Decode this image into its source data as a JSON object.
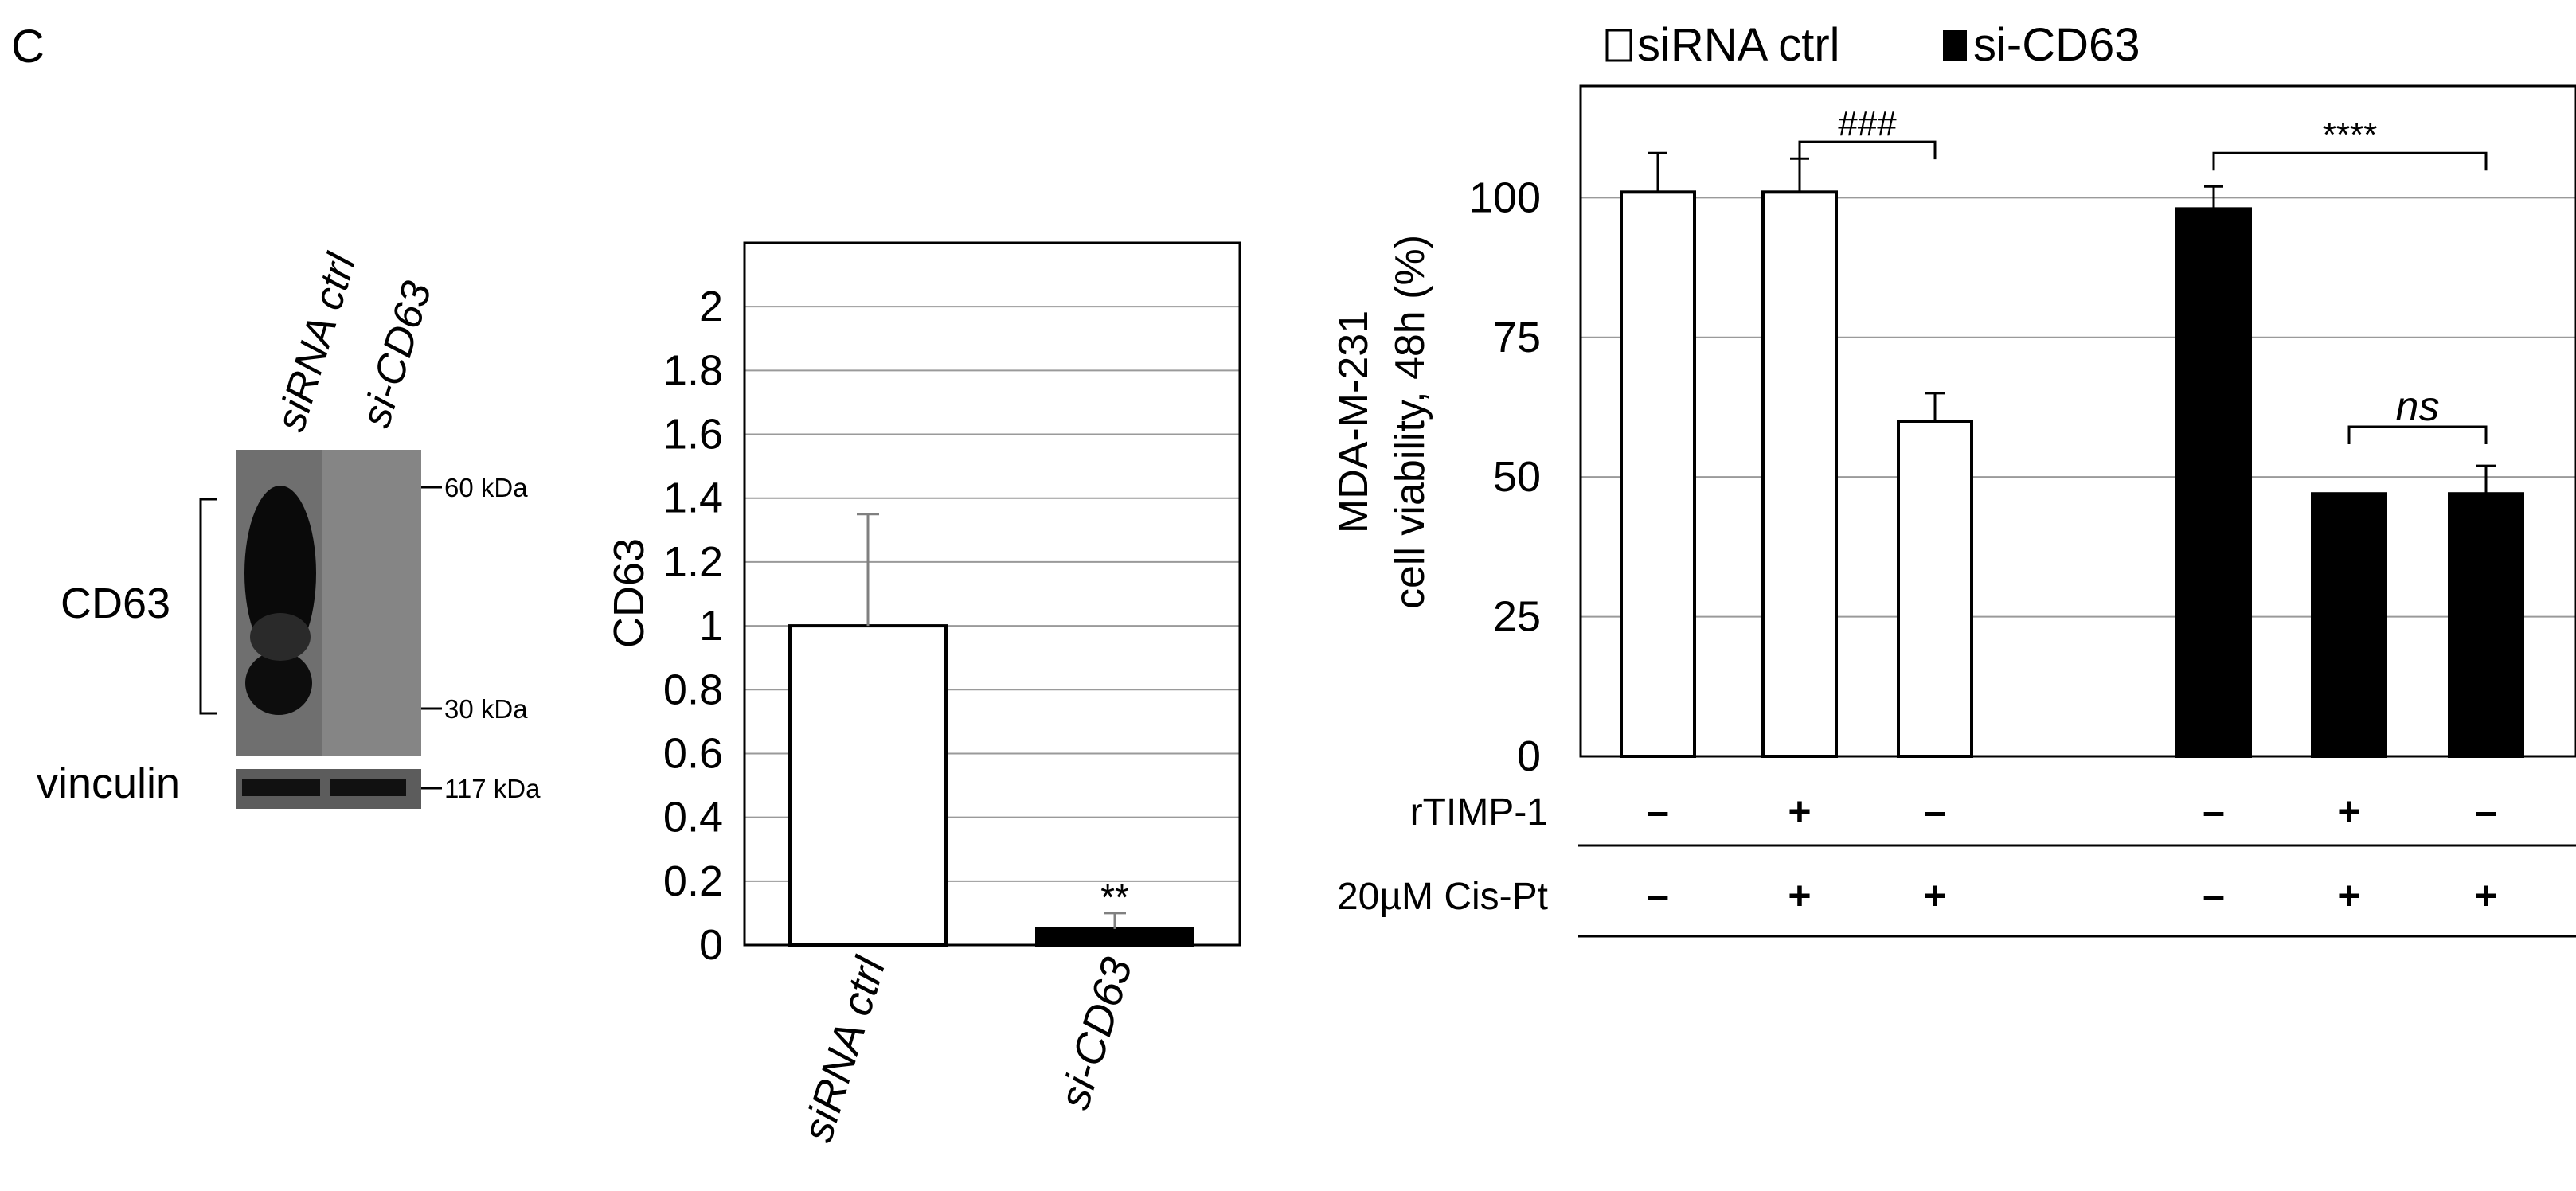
{
  "panel_label": "C",
  "western_blot": {
    "lanes": [
      "siRNA ctrl",
      "si-CD63"
    ],
    "protein_labels": [
      "CD63",
      "vinculin"
    ],
    "markers": [
      "60 kDa",
      "30 kDa",
      "117 kDa"
    ]
  },
  "legend": {
    "items": [
      {
        "label": "siRNA ctrl",
        "color": "#ffffff"
      },
      {
        "label": "si-CD63",
        "color": "#000000"
      }
    ]
  },
  "conditions": {
    "rows": [
      {
        "label": "rTIMP-1",
        "marks": [
          "–",
          "+",
          "–",
          "–",
          "+",
          "–"
        ]
      },
      {
        "label": "20µM Cis-Pt",
        "marks": [
          "–",
          "+",
          "+",
          "–",
          "+",
          "+"
        ]
      }
    ]
  },
  "chart_data": [
    {
      "type": "bar",
      "categories": [
        "siRNA ctrl",
        "si-CD63"
      ],
      "values": [
        1.0,
        0.05
      ],
      "errors": [
        0.35,
        0.05
      ],
      "colors": [
        "#ffffff",
        "#000000"
      ],
      "ylabel": "CD63",
      "ylim": [
        0,
        2.2
      ],
      "yticks": [
        0,
        0.2,
        0.4,
        0.6,
        0.8,
        1,
        1.2,
        1.4,
        1.6,
        1.8,
        2
      ],
      "grid": true,
      "annotations": [
        {
          "text": "**",
          "category": "si-CD63"
        }
      ]
    },
    {
      "type": "bar",
      "categories": [
        "1",
        "2",
        "3",
        "4",
        "5",
        "6"
      ],
      "series": [
        {
          "name": "siRNA ctrl",
          "values": [
            101,
            101,
            60,
            null,
            null,
            null
          ],
          "errors": [
            7,
            6,
            5,
            null,
            null,
            null
          ],
          "color": "#ffffff"
        },
        {
          "name": "si-CD63",
          "values": [
            null,
            null,
            null,
            98,
            47,
            47
          ],
          "errors": [
            null,
            null,
            null,
            4,
            0,
            5
          ],
          "color": "#000000"
        }
      ],
      "ylabel_lines": [
        "MDA-M-231",
        "cell viability, 48h (%)"
      ],
      "ylim": [
        0,
        120
      ],
      "yticks": [
        0,
        25,
        50,
        75,
        100
      ],
      "grid": true,
      "legend_position": "top",
      "annotations": [
        {
          "text": "###",
          "from": 1,
          "to": 2,
          "italic": false
        },
        {
          "text": "****",
          "from": 3,
          "to": 5,
          "italic": false
        },
        {
          "text": "ns",
          "from": 4,
          "to": 5,
          "italic": true
        }
      ]
    }
  ]
}
